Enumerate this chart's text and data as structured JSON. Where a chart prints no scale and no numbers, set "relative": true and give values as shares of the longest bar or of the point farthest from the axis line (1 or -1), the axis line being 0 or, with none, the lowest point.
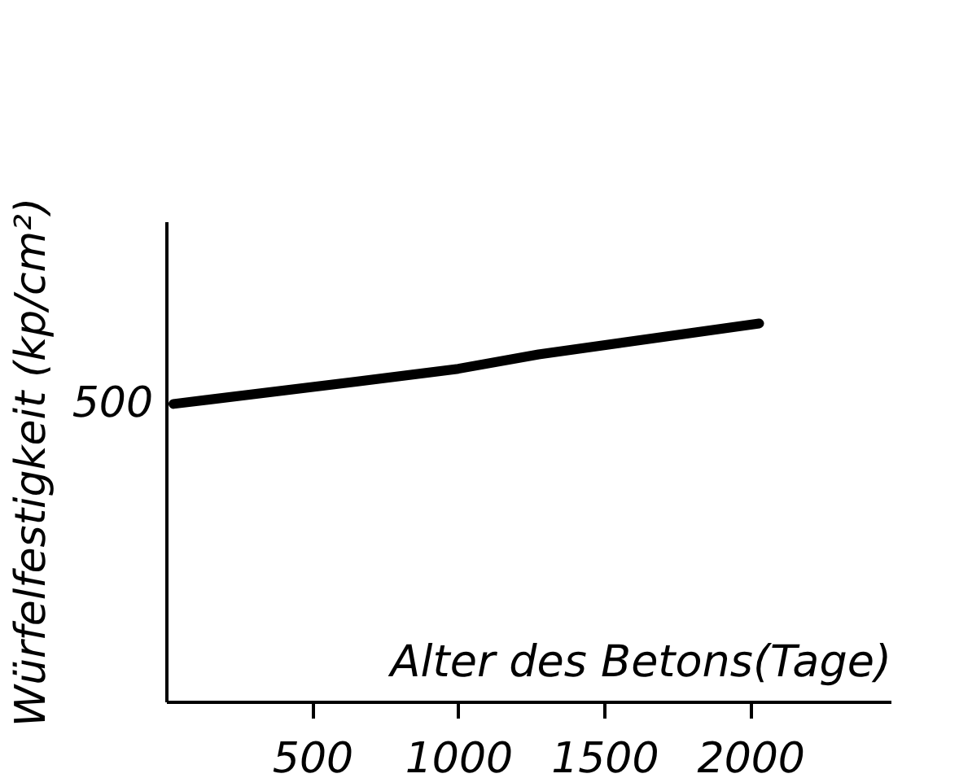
{
  "chart_data": {
    "type": "line",
    "xlabel": "Alter des Betons(Tage)",
    "ylabel": "Würfelfestigkeit (kp/cm²)",
    "relative": true,
    "x": [
      25,
      650,
      1000,
      1275,
      2030
    ],
    "series": [
      {
        "color": "#000000",
        "values": [
          0.787,
          0.846,
          0.88,
          0.918,
          1.0
        ]
      }
    ],
    "xlim": [
      0,
      2480
    ],
    "xticks": [
      500,
      1000,
      1500,
      2000
    ],
    "annotations": [
      "500"
    ],
    "grid": false,
    "legend": false,
    "marker": "none",
    "line_style": "solid"
  }
}
